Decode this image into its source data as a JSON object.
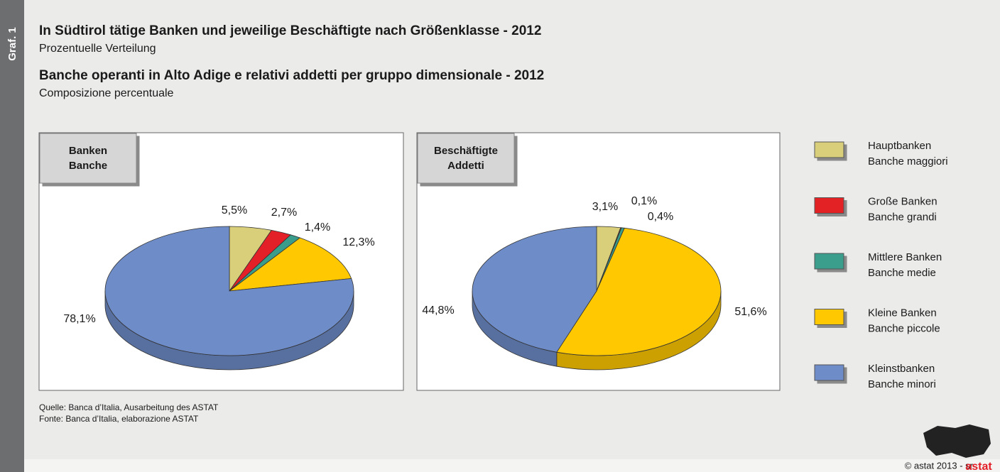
{
  "graf": "Graf. 1",
  "title_de": "In Südtirol tätige Banken und jeweilige Beschäftigte nach Größenklasse - 2012",
  "subtitle_de": "Prozentuelle Verteilung",
  "title_it": "Banche operanti in Alto Adige e relativi addetti per gruppo dimensionale - 2012",
  "subtitle_it": "Composizione percentuale",
  "legend": [
    {
      "label": [
        "Hauptbanken",
        "Banche maggiori"
      ],
      "color": "#d9cf7a"
    },
    {
      "label": [
        "Große Banken",
        "Banche grandi"
      ],
      "color": "#e32027"
    },
    {
      "label": [
        "Mittlere Banken",
        "Banche medie"
      ],
      "color": "#3a9d8c"
    },
    {
      "label": [
        "Kleine Banken",
        "Banche piccole"
      ],
      "color": "#ffc800"
    },
    {
      "label": [
        "Kleinstbanken",
        "Banche minori"
      ],
      "color": "#6e8cc8"
    }
  ],
  "chart_data": [
    {
      "type": "pie",
      "title": [
        "Banken",
        "Banche"
      ],
      "values": [
        5.5,
        2.7,
        1.4,
        12.3,
        78.1
      ],
      "value_labels": [
        "5,5%",
        "2,7%",
        "1,4%",
        "12,3%",
        "78,1%"
      ]
    },
    {
      "type": "pie",
      "title": [
        "Beschäftigte",
        "Addetti"
      ],
      "values": [
        3.1,
        0.1,
        0.4,
        51.6,
        44.8
      ],
      "value_labels": [
        "3,1%",
        "0,1%",
        "0,4%",
        "51,6%",
        "44,8%"
      ]
    }
  ],
  "source": [
    "Quelle: Banca d’Italia, Ausarbeitung des ASTAT",
    "Fonte: Banca d’Italia, elaborazione ASTAT"
  ],
  "copyright": "© astat 2013 - sr",
  "logo": "astat"
}
